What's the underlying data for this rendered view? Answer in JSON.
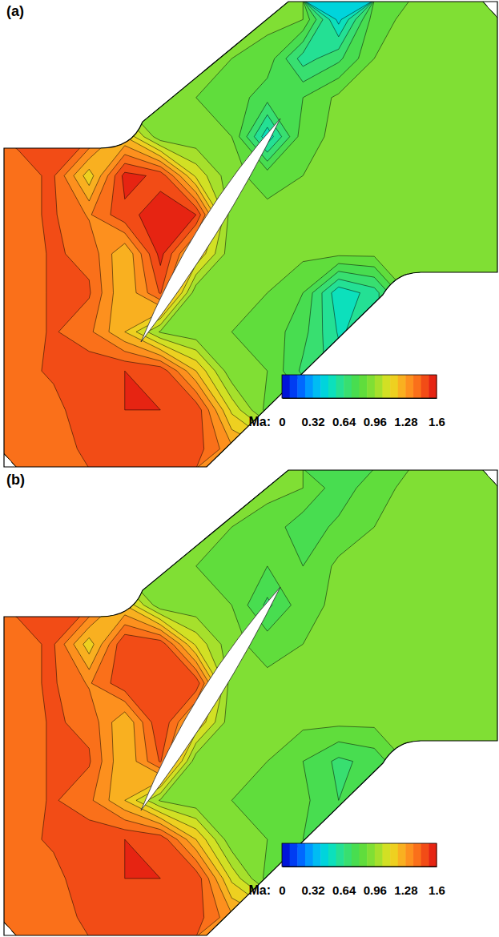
{
  "chart_data": [
    {
      "type": "contour",
      "title": "(a)",
      "tick_labels": false,
      "levels": [
        0,
        0.08,
        0.16,
        0.24,
        0.32,
        0.4,
        0.48,
        0.56,
        0.64,
        0.72,
        0.8,
        0.88,
        0.96,
        1.04,
        1.12,
        1.2,
        1.28,
        1.36,
        1.44,
        1.52,
        1.6
      ],
      "z": [
        [
          0.9,
          0.9,
          0.9,
          0.9,
          0.9,
          0.9,
          0.9,
          0.9,
          0.88,
          0.45,
          0.85,
          0.9,
          0.92,
          0.92
        ],
        [
          0.9,
          0.9,
          0.9,
          0.9,
          0.9,
          0.9,
          0.88,
          0.85,
          0.6,
          0.7,
          0.88,
          0.92,
          0.9,
          0.88
        ],
        [
          0.9,
          0.9,
          0.9,
          0.9,
          0.9,
          0.88,
          0.85,
          0.75,
          0.8,
          0.9,
          0.92,
          0.88,
          0.9,
          0.92
        ],
        [
          1.45,
          1.45,
          1.45,
          1.2,
          0.9,
          0.9,
          0.88,
          0.5,
          0.85,
          0.9,
          0.92,
          0.9,
          0.92,
          0.9
        ],
        [
          1.42,
          1.45,
          1.15,
          1.55,
          1.5,
          1.1,
          0.9,
          0.85,
          0.88,
          0.92,
          0.9,
          0.92,
          0.9,
          0.9
        ],
        [
          1.42,
          1.45,
          1.35,
          1.5,
          1.55,
          1.52,
          0.9,
          0.9,
          0.88,
          0.88,
          0.9,
          0.92,
          0.9,
          0.92
        ],
        [
          1.4,
          1.45,
          1.42,
          1.2,
          1.55,
          1.2,
          0.9,
          0.88,
          0.9,
          0.9,
          0.9,
          0.9,
          0.92,
          0.9
        ],
        [
          1.4,
          1.45,
          1.45,
          1.2,
          1.45,
          0.9,
          0.9,
          0.88,
          0.8,
          0.5,
          0.6,
          0.9,
          0.9,
          0.9
        ],
        [
          1.4,
          1.45,
          1.38,
          1.2,
          0.95,
          0.9,
          0.88,
          0.85,
          0.75,
          0.55,
          0.6,
          0.9,
          0.9,
          0.9
        ],
        [
          1.42,
          1.45,
          1.5,
          1.52,
          1.5,
          1.2,
          0.9,
          0.88,
          0.7,
          0.6,
          0.9,
          0.9,
          0.9,
          0.9
        ],
        [
          1.4,
          1.42,
          1.48,
          1.52,
          1.52,
          1.5,
          1.1,
          0.85,
          0.85,
          0.9,
          0.9,
          0.9,
          0.9,
          0.9
        ],
        [
          1.38,
          1.42,
          1.45,
          1.5,
          1.5,
          1.48,
          1.3,
          1.2,
          0.9,
          0.9,
          0.9,
          0.9,
          0.9,
          0.9
        ]
      ],
      "colorbar": {
        "label": "Ma:",
        "range": [
          0,
          1.6
        ],
        "ticks": [
          0,
          0.32,
          0.64,
          0.96,
          1.28,
          1.6
        ],
        "colors": [
          "#0000cc",
          "#0050ff",
          "#00b0ff",
          "#00e0d0",
          "#30e080",
          "#50dc40",
          "#90e030",
          "#e8e020",
          "#ffa020",
          "#f86018",
          "#e01010"
        ]
      }
    },
    {
      "type": "contour",
      "title": "(b)",
      "tick_labels": false,
      "levels": [
        0,
        0.08,
        0.16,
        0.24,
        0.32,
        0.4,
        0.48,
        0.56,
        0.64,
        0.72,
        0.8,
        0.88,
        0.96,
        1.04,
        1.12,
        1.2,
        1.28,
        1.36,
        1.44,
        1.52,
        1.6
      ],
      "z": [
        [
          0.9,
          0.9,
          0.9,
          0.9,
          0.9,
          0.9,
          0.9,
          0.9,
          0.88,
          0.75,
          0.85,
          0.9,
          0.92,
          0.92
        ],
        [
          0.9,
          0.9,
          0.9,
          0.9,
          0.9,
          0.9,
          0.88,
          0.85,
          0.75,
          0.82,
          0.88,
          0.92,
          0.9,
          0.88
        ],
        [
          0.9,
          0.9,
          0.9,
          0.9,
          0.9,
          0.88,
          0.85,
          0.8,
          0.8,
          0.9,
          0.92,
          0.88,
          0.9,
          0.92
        ],
        [
          1.45,
          1.45,
          1.45,
          1.2,
          0.9,
          0.9,
          0.88,
          0.7,
          0.85,
          0.9,
          0.92,
          0.9,
          0.92,
          0.9
        ],
        [
          1.42,
          1.45,
          1.15,
          1.52,
          1.5,
          1.1,
          0.9,
          0.85,
          0.88,
          0.92,
          0.9,
          0.92,
          0.9,
          0.9
        ],
        [
          1.42,
          1.45,
          1.35,
          1.5,
          1.52,
          1.5,
          0.9,
          0.9,
          0.88,
          0.88,
          0.9,
          0.92,
          0.9,
          0.92
        ],
        [
          1.4,
          1.45,
          1.42,
          1.2,
          1.52,
          1.2,
          0.9,
          0.88,
          0.9,
          0.9,
          0.9,
          0.9,
          0.92,
          0.9
        ],
        [
          1.4,
          1.45,
          1.45,
          1.2,
          1.45,
          0.9,
          0.9,
          0.88,
          0.8,
          0.7,
          0.75,
          0.9,
          0.9,
          0.9
        ],
        [
          1.4,
          1.45,
          1.38,
          1.2,
          0.95,
          0.9,
          0.88,
          0.85,
          0.82,
          0.72,
          0.75,
          0.9,
          0.9,
          0.9
        ],
        [
          1.42,
          1.45,
          1.5,
          1.52,
          1.5,
          1.2,
          0.9,
          0.88,
          0.8,
          0.75,
          0.9,
          0.9,
          0.9,
          0.9
        ],
        [
          1.4,
          1.42,
          1.48,
          1.52,
          1.52,
          1.5,
          1.1,
          0.85,
          0.85,
          0.9,
          0.9,
          0.9,
          0.9,
          0.9
        ],
        [
          1.38,
          1.42,
          1.45,
          1.5,
          1.5,
          1.48,
          1.3,
          1.2,
          0.9,
          0.9,
          0.9,
          0.9,
          0.9,
          0.9
        ]
      ],
      "colorbar": {
        "label": "Ma:",
        "range": [
          0,
          1.6
        ],
        "ticks": [
          0,
          0.32,
          0.64,
          0.96,
          1.28,
          1.6
        ],
        "colors": [
          "#0000cc",
          "#0050ff",
          "#00b0ff",
          "#00e0d0",
          "#30e080",
          "#50dc40",
          "#90e030",
          "#e8e020",
          "#ffa020",
          "#f86018",
          "#e01010"
        ]
      }
    }
  ]
}
